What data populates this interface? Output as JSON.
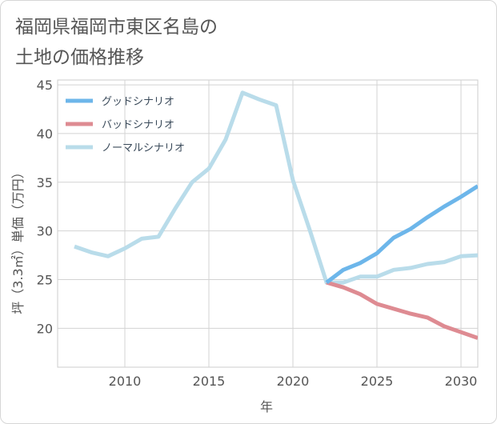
{
  "title_lines": [
    "福岡県福岡市東区名島の",
    "土地の価格推移"
  ],
  "chart_data": {
    "type": "line",
    "title": "福岡県福岡市東区名島の土地の価格推移",
    "xlabel": "年",
    "ylabel": "坪（3.3㎡）単価（万円）",
    "xlim": [
      2006,
      2031
    ],
    "ylim": [
      16,
      45.5
    ],
    "x_ticks": [
      2010,
      2015,
      2020,
      2025,
      2030
    ],
    "y_ticks": [
      20,
      25,
      30,
      35,
      40,
      45
    ],
    "grid": true,
    "legend_position": "top-left",
    "series": [
      {
        "name": "グッドシナリオ",
        "color": "#6db6ea",
        "x": [
          2022,
          2023,
          2024,
          2025,
          2026,
          2027,
          2028,
          2029,
          2030,
          2031
        ],
        "values": [
          24.7,
          26.0,
          26.7,
          27.7,
          29.3,
          30.2,
          31.4,
          32.5,
          33.5,
          34.6
        ]
      },
      {
        "name": "バッドシナリオ",
        "color": "#de8b92",
        "x": [
          2022,
          2023,
          2024,
          2025,
          2026,
          2027,
          2028,
          2029,
          2030,
          2031
        ],
        "values": [
          24.7,
          24.2,
          23.5,
          22.5,
          22.0,
          21.5,
          21.1,
          20.2,
          19.6,
          19.0
        ]
      },
      {
        "name": "ノーマルシナリオ",
        "color": "#b9dcea",
        "x": [
          2007,
          2008,
          2009,
          2010,
          2011,
          2012,
          2013,
          2014,
          2015,
          2016,
          2017,
          2018,
          2019,
          2020,
          2021,
          2022,
          2023,
          2024,
          2025,
          2026,
          2027,
          2028,
          2029,
          2030,
          2031
        ],
        "values": [
          28.4,
          27.8,
          27.4,
          28.2,
          29.2,
          29.4,
          32.3,
          35.0,
          36.4,
          39.4,
          44.2,
          43.5,
          42.9,
          35.2,
          30.1,
          24.7,
          24.7,
          25.3,
          25.3,
          26.0,
          26.2,
          26.6,
          26.8,
          27.4,
          27.5
        ]
      }
    ]
  }
}
